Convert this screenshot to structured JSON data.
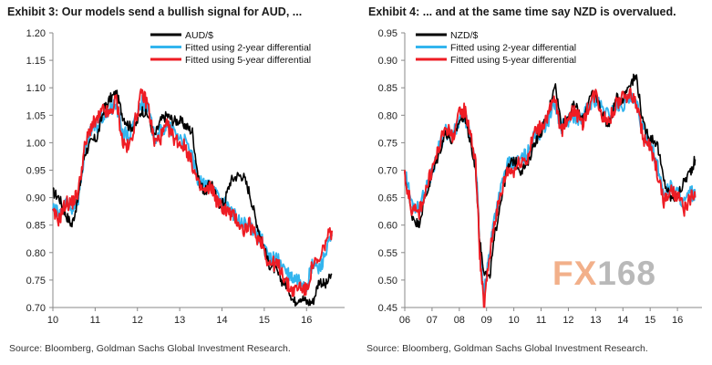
{
  "source_text": "Source: Bloomberg, Goldman Sachs Global Investment Research.",
  "watermark": {
    "part1": "FX",
    "part2": "168"
  },
  "colors": {
    "actual": "#000000",
    "fit2": "#33b5ee",
    "fit5": "#ee1c24"
  },
  "chart_data": [
    {
      "type": "line",
      "title": "Exhibit 3: Our models send a bullish signal for AUD, ...",
      "x_tick_labels": [
        "10",
        "11",
        "12",
        "13",
        "14",
        "15",
        "16"
      ],
      "x_ticks": [
        2010,
        2011,
        2012,
        2013,
        2014,
        2015,
        2016
      ],
      "xlim": [
        2010,
        2016.9
      ],
      "ylim": [
        0.7,
        1.2
      ],
      "y_ticks": [
        0.7,
        0.75,
        0.8,
        0.85,
        0.9,
        0.95,
        1.0,
        1.05,
        1.1,
        1.15,
        1.2
      ],
      "y_tick_labels": [
        "0.70",
        "0.75",
        "0.80",
        "0.85",
        "0.90",
        "0.95",
        "1.00",
        "1.05",
        "1.10",
        "1.15",
        "1.20"
      ],
      "legend_position": "top-right",
      "x": [
        2010.0,
        2010.15,
        2010.3,
        2010.45,
        2010.6,
        2010.75,
        2010.9,
        2011.05,
        2011.2,
        2011.35,
        2011.5,
        2011.65,
        2011.8,
        2011.95,
        2012.1,
        2012.25,
        2012.4,
        2012.55,
        2012.7,
        2012.85,
        2013.0,
        2013.15,
        2013.3,
        2013.45,
        2013.6,
        2013.75,
        2013.9,
        2014.05,
        2014.2,
        2014.35,
        2014.5,
        2014.65,
        2014.8,
        2014.95,
        2015.1,
        2015.25,
        2015.4,
        2015.55,
        2015.7,
        2015.85,
        2016.0,
        2016.15,
        2016.3,
        2016.45,
        2016.6
      ],
      "series": [
        {
          "name": "AUD/$",
          "color_key": "actual",
          "values": [
            0.91,
            0.9,
            0.87,
            0.85,
            0.9,
            0.98,
            1.0,
            1.01,
            1.06,
            1.08,
            1.09,
            1.05,
            1.03,
            1.03,
            1.06,
            1.05,
            1.01,
            1.04,
            1.05,
            1.04,
            1.04,
            1.03,
            1.02,
            0.93,
            0.91,
            0.93,
            0.89,
            0.89,
            0.93,
            0.94,
            0.94,
            0.91,
            0.86,
            0.82,
            0.78,
            0.77,
            0.75,
            0.74,
            0.71,
            0.72,
            0.71,
            0.71,
            0.75,
            0.74,
            0.76
          ]
        },
        {
          "name": "Fitted using 2-year differential",
          "color_key": "fit2",
          "values": [
            0.88,
            0.87,
            0.89,
            0.88,
            0.9,
            0.98,
            1.02,
            1.03,
            1.05,
            1.06,
            1.07,
            1.02,
            1.01,
            1.04,
            1.08,
            1.06,
            1.01,
            1.02,
            1.03,
            1.02,
            1.01,
            1.0,
            0.97,
            0.93,
            0.92,
            0.93,
            0.9,
            0.89,
            0.88,
            0.86,
            0.85,
            0.85,
            0.84,
            0.82,
            0.79,
            0.79,
            0.78,
            0.76,
            0.75,
            0.75,
            0.74,
            0.78,
            0.77,
            0.8,
            0.83
          ]
        },
        {
          "name": "Fitted using 5-year differential",
          "color_key": "fit5",
          "values": [
            0.87,
            0.86,
            0.89,
            0.89,
            0.91,
            0.99,
            1.03,
            1.04,
            1.06,
            1.05,
            1.08,
            1.0,
            0.99,
            1.04,
            1.09,
            1.07,
            1.0,
            1.01,
            1.03,
            1.01,
            1.0,
            0.99,
            0.96,
            0.92,
            0.91,
            0.92,
            0.89,
            0.88,
            0.87,
            0.86,
            0.84,
            0.85,
            0.83,
            0.82,
            0.78,
            0.78,
            0.77,
            0.74,
            0.73,
            0.74,
            0.73,
            0.78,
            0.78,
            0.82,
            0.84
          ]
        }
      ]
    },
    {
      "type": "line",
      "title": "Exhibit 4: ... and at the same time say NZD is overvalued.",
      "x_tick_labels": [
        "06",
        "07",
        "08",
        "09",
        "10",
        "11",
        "12",
        "13",
        "14",
        "15",
        "16"
      ],
      "x_ticks": [
        2006,
        2007,
        2008,
        2009,
        2010,
        2011,
        2012,
        2013,
        2014,
        2015,
        2016
      ],
      "xlim": [
        2006,
        2016.9
      ],
      "ylim": [
        0.45,
        0.95
      ],
      "y_ticks": [
        0.45,
        0.5,
        0.55,
        0.6,
        0.65,
        0.7,
        0.75,
        0.8,
        0.85,
        0.9,
        0.95
      ],
      "y_tick_labels": [
        "0.45",
        "0.50",
        "0.55",
        "0.60",
        "0.65",
        "0.70",
        "0.75",
        "0.80",
        "0.85",
        "0.90",
        "0.95"
      ],
      "legend_position": "top-right",
      "x": [
        2006.0,
        2006.25,
        2006.5,
        2006.75,
        2007.0,
        2007.25,
        2007.5,
        2007.75,
        2008.0,
        2008.2,
        2008.4,
        2008.6,
        2008.75,
        2008.9,
        2009.1,
        2009.3,
        2009.5,
        2009.75,
        2010.0,
        2010.25,
        2010.5,
        2010.75,
        2011.0,
        2011.25,
        2011.5,
        2011.75,
        2012.0,
        2012.25,
        2012.5,
        2012.75,
        2013.0,
        2013.25,
        2013.5,
        2013.75,
        2014.0,
        2014.25,
        2014.5,
        2014.75,
        2015.0,
        2015.25,
        2015.5,
        2015.75,
        2016.0,
        2016.25,
        2016.5,
        2016.65
      ],
      "series": [
        {
          "name": "NZD/$",
          "color_key": "actual",
          "values": [
            0.69,
            0.62,
            0.6,
            0.65,
            0.69,
            0.73,
            0.77,
            0.75,
            0.79,
            0.8,
            0.75,
            0.7,
            0.57,
            0.52,
            0.5,
            0.58,
            0.64,
            0.7,
            0.72,
            0.7,
            0.71,
            0.75,
            0.77,
            0.8,
            0.86,
            0.78,
            0.8,
            0.82,
            0.79,
            0.83,
            0.84,
            0.8,
            0.78,
            0.83,
            0.83,
            0.86,
            0.87,
            0.78,
            0.76,
            0.75,
            0.68,
            0.65,
            0.65,
            0.68,
            0.7,
            0.72
          ]
        },
        {
          "name": "Fitted using 2-year differential",
          "color_key": "fit2",
          "values": [
            0.7,
            0.64,
            0.63,
            0.66,
            0.7,
            0.74,
            0.77,
            0.76,
            0.79,
            0.8,
            0.76,
            0.72,
            0.56,
            0.47,
            0.55,
            0.62,
            0.66,
            0.71,
            0.71,
            0.72,
            0.73,
            0.76,
            0.77,
            0.79,
            0.82,
            0.78,
            0.79,
            0.8,
            0.79,
            0.82,
            0.83,
            0.81,
            0.8,
            0.82,
            0.82,
            0.83,
            0.82,
            0.77,
            0.75,
            0.71,
            0.66,
            0.67,
            0.66,
            0.64,
            0.66,
            0.65
          ]
        },
        {
          "name": "Fitted using 5-year differential",
          "color_key": "fit5",
          "values": [
            0.69,
            0.63,
            0.62,
            0.66,
            0.7,
            0.74,
            0.78,
            0.76,
            0.8,
            0.81,
            0.77,
            0.71,
            0.55,
            0.45,
            0.54,
            0.61,
            0.65,
            0.7,
            0.7,
            0.72,
            0.72,
            0.77,
            0.78,
            0.8,
            0.83,
            0.77,
            0.8,
            0.81,
            0.78,
            0.82,
            0.84,
            0.8,
            0.79,
            0.82,
            0.83,
            0.84,
            0.82,
            0.76,
            0.74,
            0.7,
            0.64,
            0.66,
            0.65,
            0.63,
            0.65,
            0.65
          ]
        }
      ]
    }
  ]
}
